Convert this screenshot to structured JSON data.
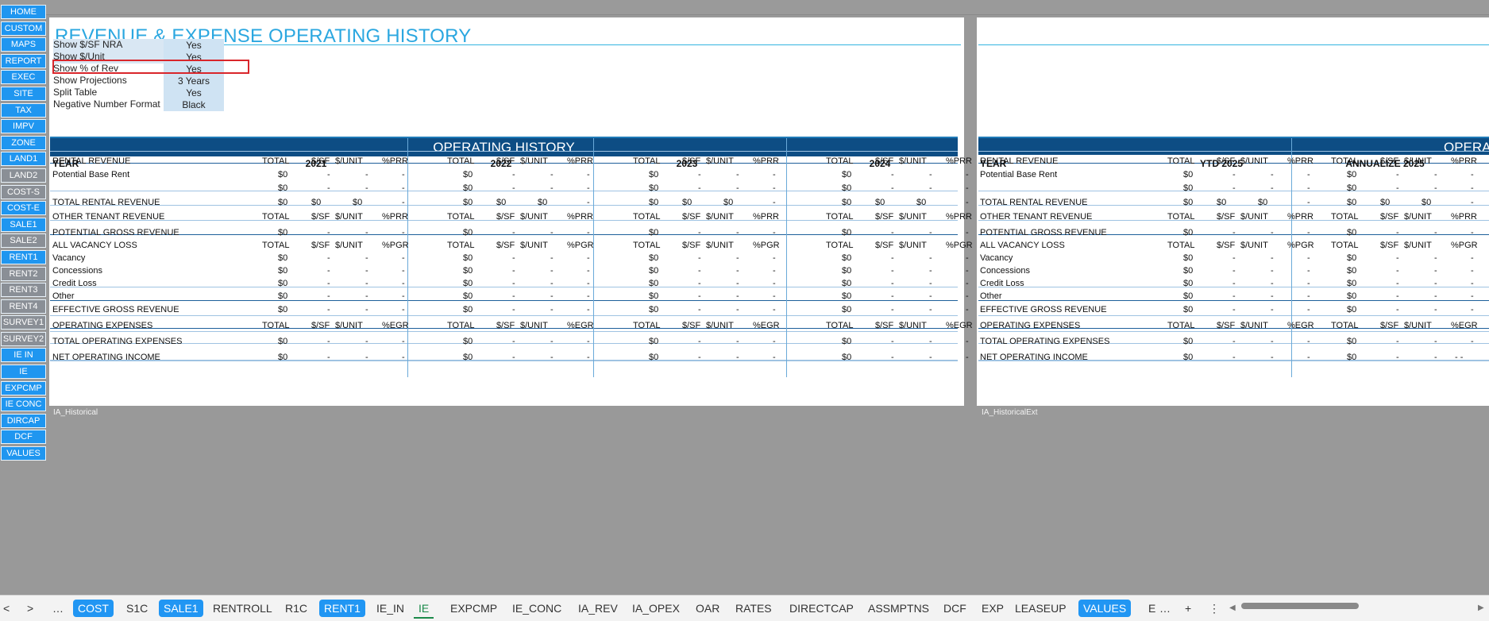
{
  "nav": [
    "HOME",
    "CUSTOM",
    "MAPS",
    "REPORT",
    "EXEC",
    "SITE",
    "TAX",
    "IMPV",
    "ZONE",
    "LAND1",
    "LAND2",
    "COST-S",
    "COST-E",
    "SALE1",
    "SALE2",
    "RENT1",
    "RENT2",
    "RENT3",
    "RENT4",
    "SURVEY1",
    "SURVEY2",
    "IE IN",
    "IE",
    "EXPCMP",
    "IE CONC",
    "DIRCAP",
    "DCF",
    "VALUES"
  ],
  "nav_gray": [
    "LAND2",
    "COST-S",
    "SALE2",
    "RENT2",
    "RENT3",
    "RENT4",
    "SURVEY1",
    "SURVEY2"
  ],
  "title": "REVENUE & EXPENSE OPERATING HISTORY",
  "options": [
    {
      "label": "Show $/SF NRA",
      "value": "Yes"
    },
    {
      "label": "Show $/Unit",
      "value": "Yes"
    },
    {
      "label": "Show % of Rev",
      "value": "Yes"
    },
    {
      "label": "Show Projections",
      "value": "3 Years"
    },
    {
      "label": "Split Table",
      "value": "Yes"
    },
    {
      "label": "Negative Number Format",
      "value": "Black"
    }
  ],
  "banner1": "OPERATING HISTORY",
  "banner2": "OPERATING",
  "year_label": "YEAR",
  "years1": [
    "2021",
    "2022",
    "2023",
    "2024"
  ],
  "years2": [
    "YTD 2025",
    "ANNUALIZE 2025"
  ],
  "col_heads": [
    "TOTAL",
    "$/SF",
    "$/UNIT"
  ],
  "pct_prr": "%PRR",
  "pct_pgr": "%PGR",
  "pct_egr": "%EGR",
  "sections": {
    "rental_revenue": "RENTAL REVENUE",
    "potential_base_rent": "Potential Base Rent",
    "total_rental_revenue": "TOTAL RENTAL REVENUE",
    "other_tenant_revenue": "OTHER TENANT REVENUE",
    "potential_gross_revenue": "POTENTIAL GROSS REVENUE",
    "all_vacancy_loss": "ALL VACANCY LOSS",
    "vacancy": "Vacancy",
    "concessions": "Concessions",
    "credit_loss": "Credit Loss",
    "other": "Other",
    "effective_gross_revenue": "EFFECTIVE GROSS REVENUE",
    "operating_expenses": "OPERATING EXPENSES",
    "total_operating_expenses": "TOTAL OPERATING EXPENSES",
    "net_operating_income": "NET OPERATING INCOME"
  },
  "zero": "$0",
  "dash": "-",
  "dd": "- -",
  "sheet1": "IA_Historical",
  "sheet2": "IA_HistoricalExt",
  "tabs": [
    {
      "label": "COST",
      "style": "blue"
    },
    {
      "label": "S1C",
      "style": ""
    },
    {
      "label": "SALE1",
      "style": "blue"
    },
    {
      "label": "RENTROLL",
      "style": ""
    },
    {
      "label": "R1C",
      "style": ""
    },
    {
      "label": "RENT1",
      "style": "blue"
    },
    {
      "label": "IE_IN",
      "style": ""
    },
    {
      "label": "IE",
      "style": "active"
    },
    {
      "label": "EXPCMP",
      "style": ""
    },
    {
      "label": "IE_CONC",
      "style": ""
    },
    {
      "label": "IA_REV",
      "style": ""
    },
    {
      "label": "IA_OPEX",
      "style": ""
    },
    {
      "label": "OAR",
      "style": ""
    },
    {
      "label": "RATES",
      "style": ""
    },
    {
      "label": "DIRECTCAP",
      "style": ""
    },
    {
      "label": "ASSMPTNS",
      "style": ""
    },
    {
      "label": "DCF",
      "style": ""
    },
    {
      "label": "EXP",
      "style": ""
    },
    {
      "label": "LEASEUP",
      "style": ""
    },
    {
      "label": "VALUES",
      "style": "blue"
    },
    {
      "label": "E",
      "style": ""
    }
  ],
  "tab_controls": {
    "prev": "<",
    "next": ">",
    "more": "…",
    "add": "+",
    "menu": "⋮",
    "scroll_left": "◀",
    "scroll_right": "▶"
  },
  "colors": {
    "nav_blue": "#1f96f0",
    "nav_gray": "#8a8f96",
    "banner": "#0d4d84",
    "title": "#2ba7e0",
    "option_fill": "#cfe3f3",
    "highlight": "#d9262b"
  }
}
